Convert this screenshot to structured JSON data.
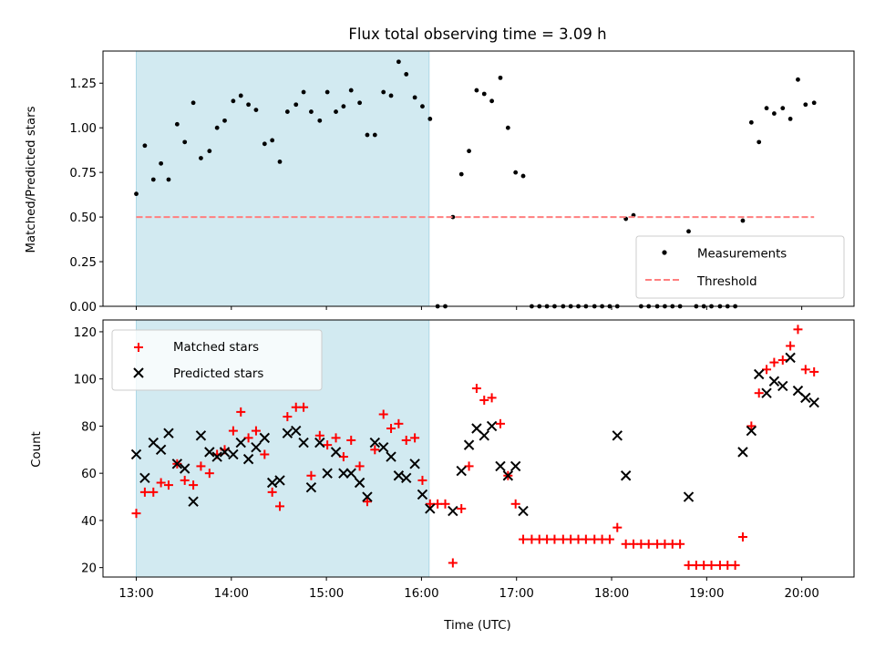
{
  "chart_data": [
    {
      "type": "scatter",
      "title": "Flux total observing time = 3.09 h",
      "ylabel": "Matched/Predicted stars",
      "xlabel": "",
      "xlim": [
        12.65,
        20.55
      ],
      "ylim": [
        0,
        1.43
      ],
      "yticks": [
        0.0,
        0.25,
        0.5,
        0.75,
        1.0,
        1.25
      ],
      "ytick_labels": [
        "0.00",
        "0.25",
        "0.50",
        "0.75",
        "1.00",
        "1.25"
      ],
      "shaded_span": [
        13.0,
        16.08
      ],
      "shade_color": "#add8e6",
      "legend_position": "lower right",
      "series": [
        {
          "name": "Measurements",
          "marker": "dot",
          "color": "#000000",
          "x": [
            13.0,
            13.09,
            13.18,
            13.26,
            13.34,
            13.43,
            13.51,
            13.6,
            13.68,
            13.77,
            13.85,
            13.93,
            14.02,
            14.1,
            14.18,
            14.26,
            14.35,
            14.43,
            14.51,
            14.59,
            14.68,
            14.76,
            14.84,
            14.93,
            15.01,
            15.1,
            15.18,
            15.26,
            15.35,
            15.43,
            15.51,
            15.6,
            15.68,
            15.76,
            15.84,
            15.93,
            16.01,
            16.09,
            16.17,
            16.25,
            16.33,
            16.42,
            16.5,
            16.58,
            16.66,
            16.74,
            16.83,
            16.91,
            16.99,
            17.07,
            17.16,
            17.24,
            17.32,
            17.4,
            17.49,
            17.57,
            17.65,
            17.73,
            17.82,
            17.9,
            17.98,
            18.06,
            18.15,
            18.23,
            18.31,
            18.39,
            18.48,
            18.56,
            18.64,
            18.72,
            18.81,
            18.89,
            18.97,
            19.05,
            19.14,
            19.22,
            19.3,
            19.38,
            19.47,
            19.55,
            19.63,
            19.71,
            19.8,
            19.88,
            19.96,
            20.04,
            20.13
          ],
          "y": [
            0.63,
            0.9,
            0.71,
            0.8,
            0.71,
            1.02,
            0.92,
            1.14,
            0.83,
            0.87,
            1.0,
            1.04,
            1.15,
            1.18,
            1.13,
            1.1,
            0.91,
            0.93,
            0.81,
            1.09,
            1.13,
            1.2,
            1.09,
            1.04,
            1.2,
            1.09,
            1.12,
            1.21,
            1.14,
            0.96,
            0.96,
            1.2,
            1.18,
            1.37,
            1.3,
            1.17,
            1.12,
            1.05,
            0.0,
            0.0,
            0.5,
            0.74,
            0.87,
            1.21,
            1.19,
            1.15,
            1.28,
            1.0,
            0.75,
            0.73,
            0.0,
            0.0,
            0.0,
            0.0,
            0.0,
            0.0,
            0.0,
            0.0,
            0.0,
            0.0,
            0.0,
            0.0,
            0.49,
            0.51,
            0.0,
            0.0,
            0.0,
            0.0,
            0.0,
            0.0,
            0.42,
            0.0,
            0.0,
            0.0,
            0.0,
            0.0,
            0.0,
            0.48,
            1.03,
            0.92,
            1.11,
            1.08,
            1.11,
            1.05,
            1.27,
            1.13,
            1.14
          ]
        },
        {
          "name": "Threshold",
          "marker": "dashed-line",
          "color": "#ff7f7f",
          "x": [
            13.0,
            20.13
          ],
          "y": [
            0.5,
            0.5
          ]
        }
      ]
    },
    {
      "type": "scatter",
      "title": "",
      "ylabel": "Count",
      "xlabel": "Time (UTC)",
      "xlim": [
        12.65,
        20.55
      ],
      "ylim": [
        16,
        125
      ],
      "yticks": [
        20,
        40,
        60,
        80,
        100,
        120
      ],
      "ytick_labels": [
        "20",
        "40",
        "60",
        "80",
        "100",
        "120"
      ],
      "xticks": [
        13,
        14,
        15,
        16,
        17,
        18,
        19,
        20
      ],
      "xtick_labels": [
        "13:00",
        "14:00",
        "15:00",
        "16:00",
        "17:00",
        "18:00",
        "19:00",
        "20:00"
      ],
      "shaded_span": [
        13.0,
        16.08
      ],
      "shade_color": "#add8e6",
      "legend_position": "upper left",
      "series": [
        {
          "name": "Matched stars",
          "marker": "plus",
          "color": "#ff0000",
          "x": [
            13.0,
            13.09,
            13.18,
            13.26,
            13.34,
            13.43,
            13.51,
            13.6,
            13.68,
            13.77,
            13.85,
            13.93,
            14.02,
            14.1,
            14.18,
            14.26,
            14.35,
            14.43,
            14.51,
            14.59,
            14.68,
            14.76,
            14.84,
            14.93,
            15.01,
            15.1,
            15.18,
            15.26,
            15.35,
            15.43,
            15.51,
            15.6,
            15.68,
            15.76,
            15.84,
            15.93,
            16.01,
            16.09,
            16.17,
            16.25,
            16.33,
            16.42,
            16.5,
            16.58,
            16.66,
            16.74,
            16.83,
            16.91,
            16.99,
            17.07,
            17.16,
            17.24,
            17.32,
            17.4,
            17.49,
            17.57,
            17.65,
            17.73,
            17.82,
            17.9,
            17.98,
            18.06,
            18.15,
            18.23,
            18.31,
            18.39,
            18.48,
            18.56,
            18.64,
            18.72,
            18.81,
            18.89,
            18.97,
            19.05,
            19.14,
            19.22,
            19.3,
            19.38,
            19.47,
            19.55,
            19.63,
            19.71,
            19.8,
            19.88,
            19.96,
            20.04,
            20.13
          ],
          "y": [
            43,
            52,
            52,
            56,
            55,
            64,
            57,
            55,
            63,
            60,
            68,
            70,
            78,
            86,
            75,
            78,
            68,
            52,
            46,
            84,
            88,
            88,
            59,
            76,
            72,
            75,
            67,
            74,
            63,
            48,
            70,
            85,
            79,
            81,
            74,
            75,
            57,
            47,
            47,
            47,
            22,
            45,
            63,
            96,
            91,
            92,
            81,
            59,
            47,
            32,
            32,
            32,
            32,
            32,
            32,
            32,
            32,
            32,
            32,
            32,
            32,
            37,
            30,
            30,
            30,
            30,
            30,
            30,
            30,
            30,
            21,
            21,
            21,
            21,
            21,
            21,
            21,
            33,
            80,
            94,
            104,
            107,
            108,
            114,
            121,
            104,
            103
          ]
        },
        {
          "name": "Predicted stars",
          "marker": "x",
          "color": "#000000",
          "x": [
            13.0,
            13.09,
            13.18,
            13.26,
            13.34,
            13.43,
            13.51,
            13.6,
            13.68,
            13.77,
            13.85,
            13.93,
            14.02,
            14.1,
            14.18,
            14.26,
            14.35,
            14.43,
            14.51,
            14.59,
            14.68,
            14.76,
            14.84,
            14.93,
            15.01,
            15.1,
            15.18,
            15.26,
            15.35,
            15.43,
            15.51,
            15.6,
            15.68,
            15.76,
            15.84,
            15.93,
            16.01,
            16.09,
            16.33,
            16.42,
            16.5,
            16.58,
            16.66,
            16.74,
            16.83,
            16.91,
            16.99,
            17.07,
            18.06,
            18.15,
            18.81,
            19.38,
            19.47,
            19.55,
            19.63,
            19.71,
            19.8,
            19.88,
            19.96,
            20.04,
            20.13
          ],
          "y": [
            68,
            58,
            73,
            70,
            77,
            64,
            62,
            48,
            76,
            69,
            67,
            69,
            68,
            73,
            66,
            71,
            75,
            56,
            57,
            77,
            78,
            73,
            54,
            73,
            60,
            69,
            60,
            60,
            56,
            50,
            73,
            71,
            67,
            59,
            58,
            64,
            51,
            45,
            44,
            61,
            72,
            79,
            76,
            80,
            63,
            59,
            63,
            44,
            76,
            59,
            50,
            69,
            78,
            102,
            94,
            99,
            97,
            109,
            95,
            92,
            90
          ]
        }
      ]
    }
  ]
}
